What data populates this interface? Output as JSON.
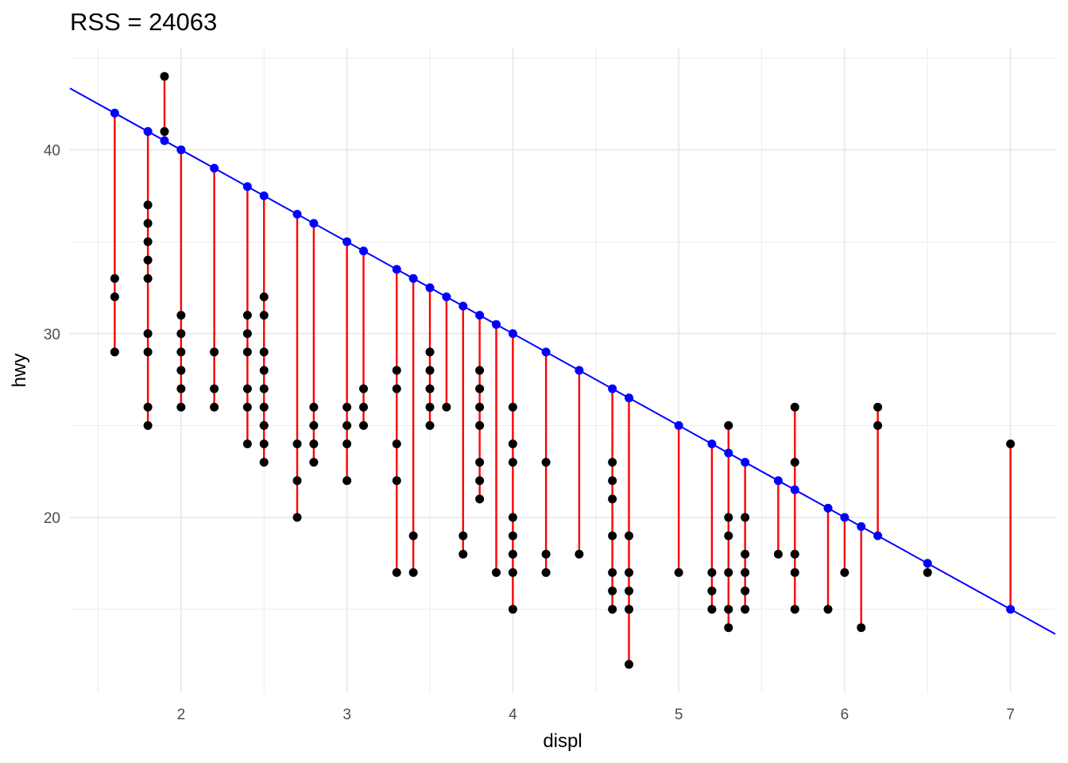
{
  "chart_data": {
    "type": "scatter",
    "title": "RSS = 24063",
    "xlabel": "displ",
    "ylabel": "hwy",
    "xlim": [
      1.33,
      7.27
    ],
    "ylim": [
      10.44,
      45.56
    ],
    "x_ticks": [
      2,
      3,
      4,
      5,
      6,
      7
    ],
    "y_ticks": [
      20,
      30,
      40
    ],
    "grid": true,
    "legend": "none",
    "fit_line": {
      "intercept": 50,
      "slope": -5
    },
    "colors": {
      "observed": "#000000",
      "fitted": "#0000ff",
      "residual": "#ff0000",
      "grid": "#ebebeb"
    },
    "points": [
      {
        "x": 1.6,
        "y": [
          33,
          32,
          29
        ]
      },
      {
        "x": 1.8,
        "y": [
          37,
          36,
          35,
          34,
          33,
          30,
          29,
          26,
          25
        ]
      },
      {
        "x": 1.9,
        "y": [
          44,
          41
        ]
      },
      {
        "x": 2.0,
        "y": [
          31,
          30,
          29,
          28,
          27,
          26
        ]
      },
      {
        "x": 2.2,
        "y": [
          29,
          27,
          26
        ]
      },
      {
        "x": 2.4,
        "y": [
          31,
          30,
          29,
          27,
          26,
          24
        ]
      },
      {
        "x": 2.5,
        "y": [
          32,
          31,
          29,
          28,
          27,
          26,
          25,
          24,
          23
        ]
      },
      {
        "x": 2.7,
        "y": [
          24,
          22,
          20
        ]
      },
      {
        "x": 2.8,
        "y": [
          26,
          25,
          24,
          23
        ]
      },
      {
        "x": 3.0,
        "y": [
          26,
          25,
          24,
          22
        ]
      },
      {
        "x": 3.1,
        "y": [
          27,
          26,
          25
        ]
      },
      {
        "x": 3.3,
        "y": [
          28,
          27,
          24,
          22,
          17
        ]
      },
      {
        "x": 3.4,
        "y": [
          19,
          17
        ]
      },
      {
        "x": 3.5,
        "y": [
          29,
          28,
          27,
          26,
          25
        ]
      },
      {
        "x": 3.6,
        "y": [
          26
        ]
      },
      {
        "x": 3.7,
        "y": [
          19,
          18
        ]
      },
      {
        "x": 3.8,
        "y": [
          28,
          27,
          26,
          25,
          23,
          22,
          21
        ]
      },
      {
        "x": 3.9,
        "y": [
          17
        ]
      },
      {
        "x": 4.0,
        "y": [
          26,
          24,
          23,
          20,
          19,
          18,
          17,
          15
        ]
      },
      {
        "x": 4.2,
        "y": [
          23,
          18,
          17
        ]
      },
      {
        "x": 4.4,
        "y": [
          18
        ]
      },
      {
        "x": 4.6,
        "y": [
          23,
          22,
          21,
          19,
          17,
          16,
          15
        ]
      },
      {
        "x": 4.7,
        "y": [
          19,
          17,
          16,
          15,
          12
        ]
      },
      {
        "x": 5.0,
        "y": [
          17
        ]
      },
      {
        "x": 5.2,
        "y": [
          17,
          16,
          15
        ]
      },
      {
        "x": 5.3,
        "y": [
          25,
          20,
          19,
          17,
          15,
          14
        ]
      },
      {
        "x": 5.4,
        "y": [
          20,
          18,
          17,
          16,
          15
        ]
      },
      {
        "x": 5.6,
        "y": [
          18
        ]
      },
      {
        "x": 5.7,
        "y": [
          26,
          23,
          18,
          17,
          15
        ]
      },
      {
        "x": 5.9,
        "y": [
          15
        ]
      },
      {
        "x": 6.0,
        "y": [
          17
        ]
      },
      {
        "x": 6.1,
        "y": [
          14
        ]
      },
      {
        "x": 6.2,
        "y": [
          26,
          25
        ]
      },
      {
        "x": 6.5,
        "y": [
          17
        ]
      },
      {
        "x": 7.0,
        "y": [
          24
        ]
      }
    ]
  }
}
